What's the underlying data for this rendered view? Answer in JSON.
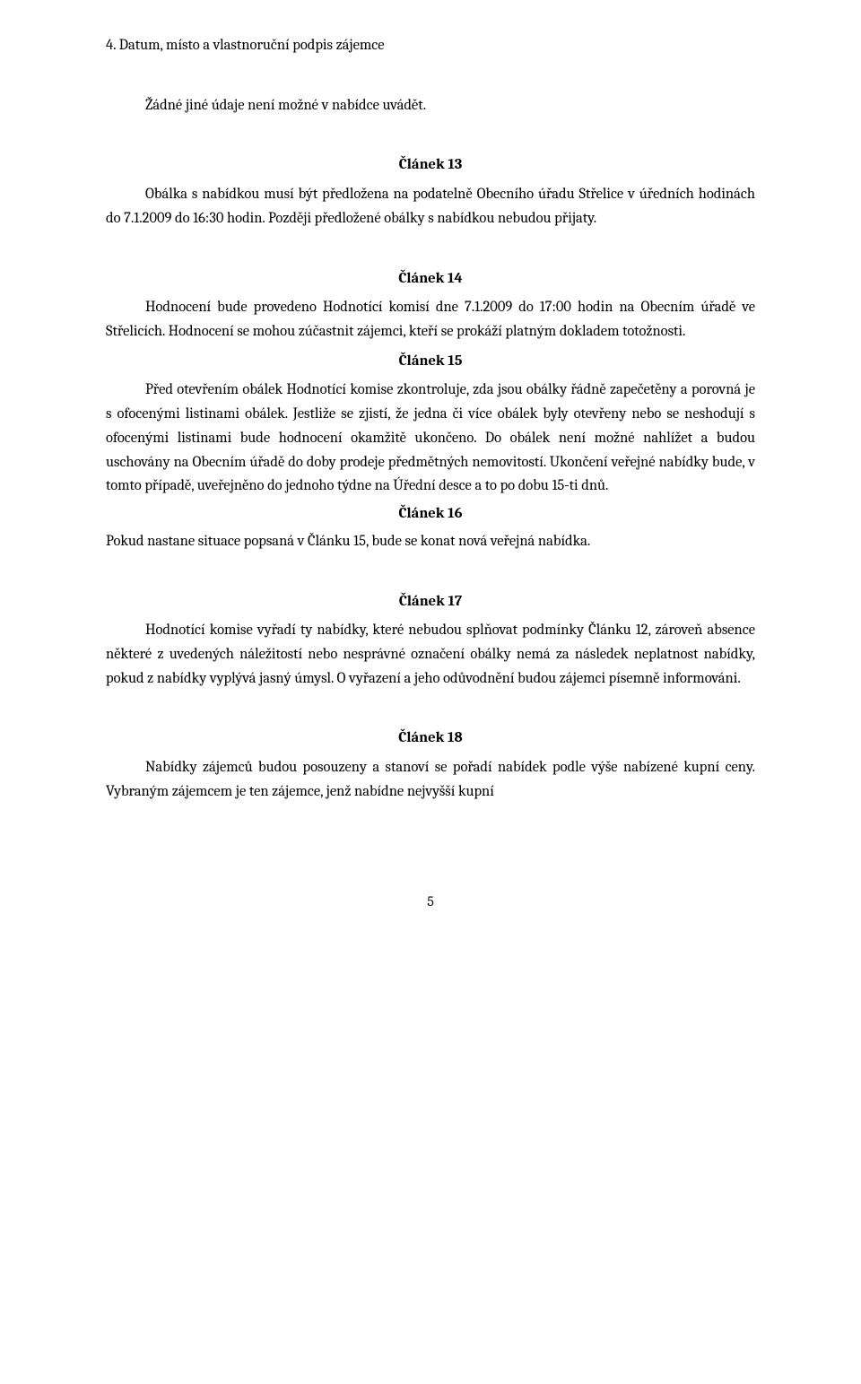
{
  "listItem4": "4.    Datum, místo  a vlastnoruční podpis zájemce",
  "standaloneLine": "Žádné jiné údaje není možné v nabídce uvádět.",
  "article13": {
    "heading": "Článek 13",
    "text": "Obálka s nabídkou musí být předložena na podatelně Obecního úřadu Střelice v úředních hodinách do 7.1.2009 do 16:30 hodin. Později předložené obálky s nabídkou nebudou přijaty."
  },
  "article14": {
    "heading": "Článek 14",
    "text": "Hodnocení bude provedeno Hodnotící komisí dne 7.1.2009 do 17:00 hodin na Obecním úřadě ve Střelicích. Hodnocení se mohou zúčastnit zájemci, kteří se prokáží platným dokladem totožnosti."
  },
  "article15": {
    "heading": "Článek  15",
    "text": "Před otevřením obálek Hodnotící komise zkontroluje, zda jsou obálky řádně zapečetěny a porovná je s ofocenými listinami obálek. Jestliže se zjistí, že jedna či více obálek byly otevřeny nebo se neshodují s ofocenými listinami bude hodnocení  okamžitě ukončeno.  Do obálek není možné nahlížet a budou uschovány na Obecním úřadě do doby prodeje předmětných nemovitostí.  Ukončení veřejné nabídky bude, v tomto případě, uveřejněno do jednoho týdne na Úřední desce a to po dobu 15-ti dnů."
  },
  "article16": {
    "heading": "Článek 16",
    "text": "Pokud nastane situace popsaná v Článku 15, bude se konat nová veřejná nabídka."
  },
  "article17": {
    "heading": "Článek 17",
    "text": "Hodnotící komise vyřadí ty nabídky, které nebudou splňovat podmínky Článku 12, zároveň absence některé z uvedených náležitostí nebo nesprávné označení obálky nemá za následek neplatnost nabídky, pokud z nabídky vyplývá jasný úmysl. O vyřazení a jeho odůvodnění  budou zájemci písemně informováni."
  },
  "article18": {
    "heading": "Článek 18",
    "text": "Nabídky zájemců budou posouzeny a  stanoví se  pořadí nabídek podle výše nabízené kupní ceny. Vybraným zájemcem je ten zájemce, jenž nabídne nejvyšší kupní"
  },
  "pageNumber": "5"
}
